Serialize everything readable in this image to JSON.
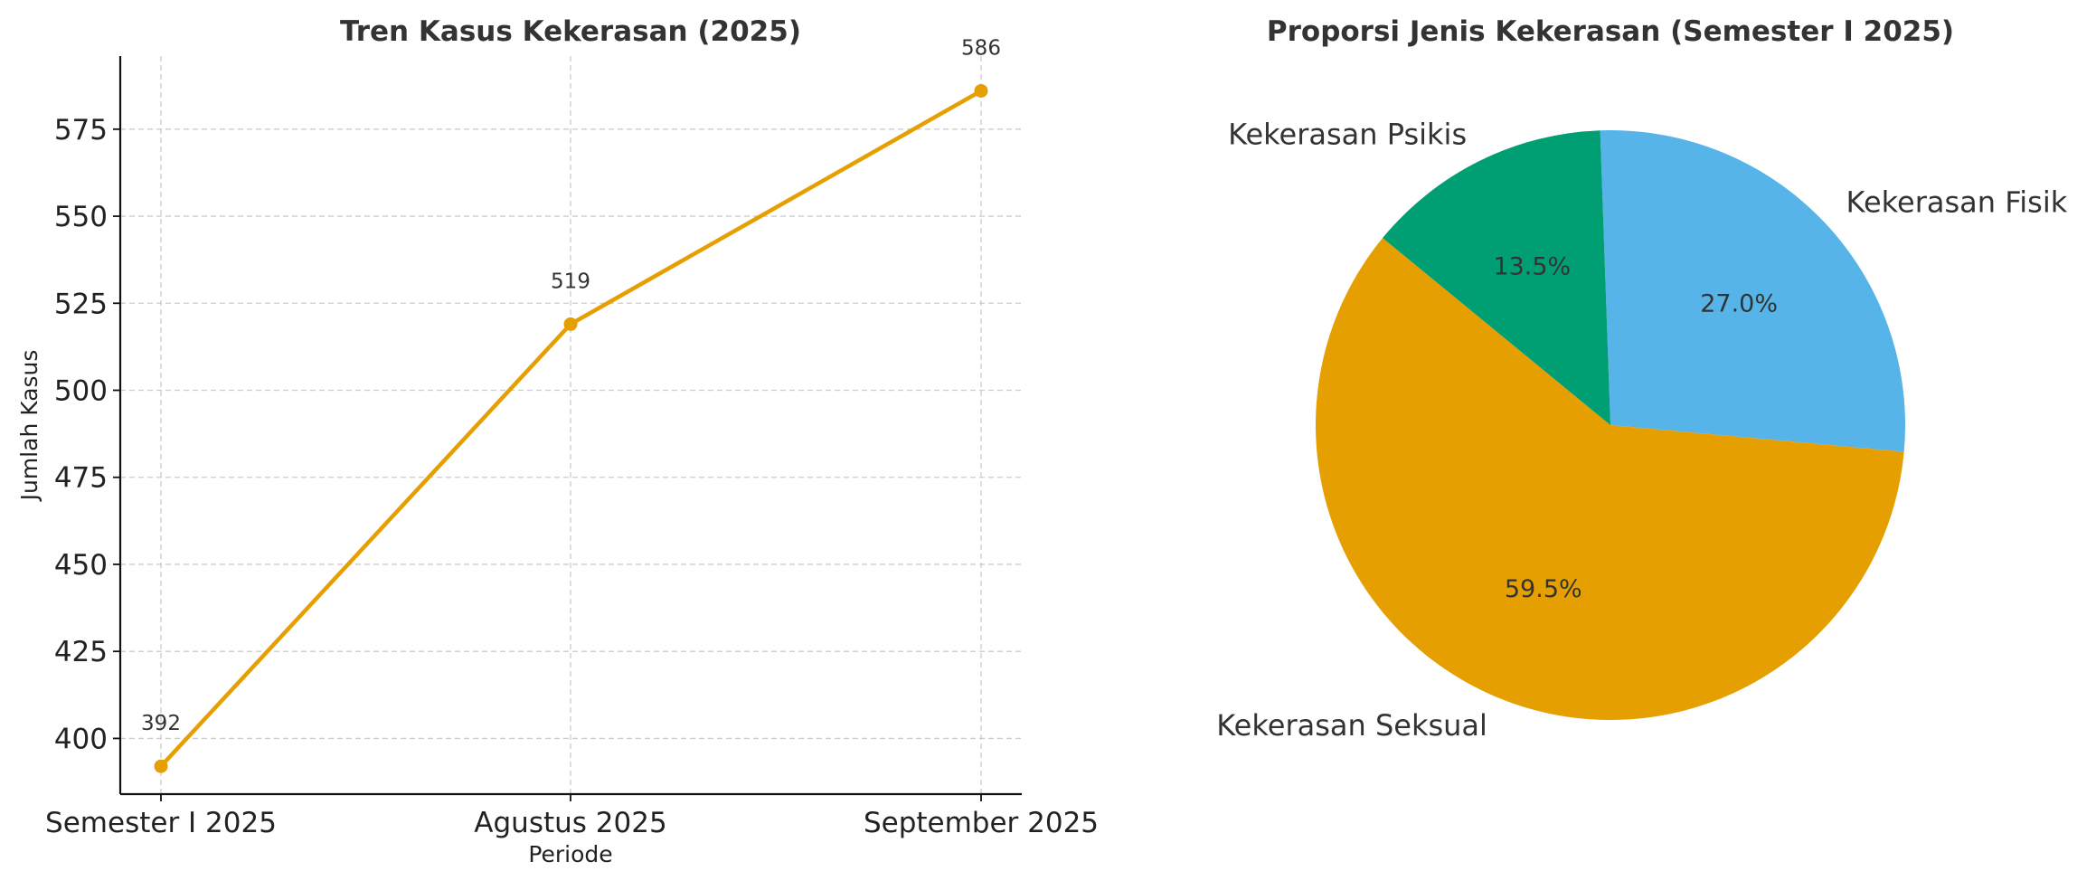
{
  "chart_data": [
    {
      "type": "line",
      "title": "Tren Kasus Kekerasan (2025)",
      "xlabel": "Periode",
      "ylabel": "Jumlah Kasus",
      "categories": [
        "Semester I 2025",
        "Agustus 2025",
        "September 2025"
      ],
      "values": [
        392,
        519,
        586
      ],
      "data_labels": [
        "392",
        "519",
        "586"
      ],
      "ylim": [
        384,
        596
      ],
      "yticks": [
        400,
        425,
        450,
        475,
        500,
        525,
        550,
        575
      ],
      "grid": true,
      "color": "#E69F00"
    },
    {
      "type": "pie",
      "title": "Proporsi Jenis Kekerasan (Semester I 2025)",
      "slices": [
        {
          "label": "Kekerasan Fisik",
          "value": 27.0,
          "pct_label": "27.0%",
          "color": "#56B4E9"
        },
        {
          "label": "Kekerasan Seksual",
          "value": 59.5,
          "pct_label": "59.5%",
          "color": "#E69F00"
        },
        {
          "label": "Kekerasan Psikis",
          "value": 13.5,
          "pct_label": "13.5%",
          "color": "#009E73"
        }
      ]
    }
  ]
}
